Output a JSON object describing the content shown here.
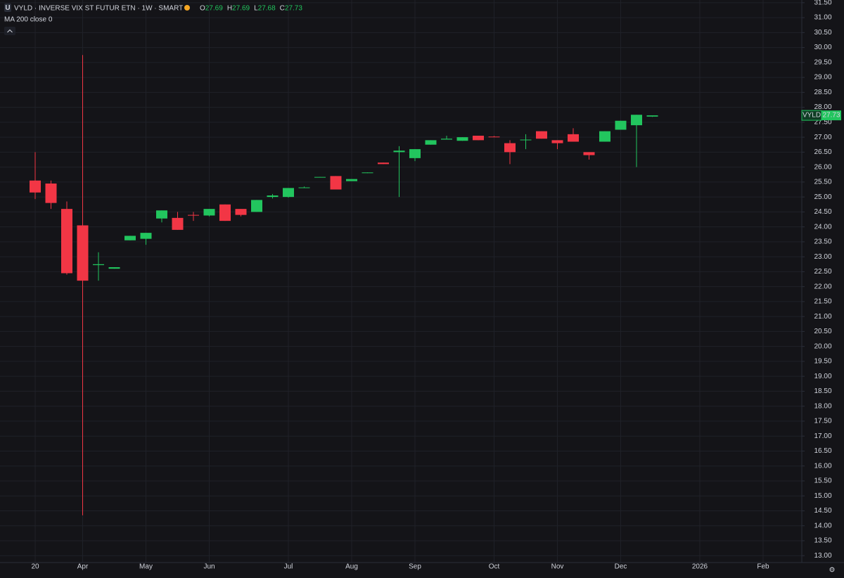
{
  "chart_data": {
    "type": "candlestick",
    "logo_letter": "U",
    "title": "VYLD · INVERSE VIX ST FUTUR ETN · 1W · SMART",
    "legend_labels": [
      "O",
      "H",
      "L",
      "C"
    ],
    "indicator": "MA 200 close 0",
    "price_tag_symbol": "VYLD",
    "up_color": "#22c55e",
    "down_color": "#f23645",
    "grid": true,
    "categories": [
      "20",
      null,
      null,
      "Apr",
      null,
      null,
      null,
      "May",
      null,
      null,
      null,
      "Jun",
      null,
      null,
      null,
      null,
      "Jul",
      null,
      null,
      null,
      "Aug",
      null,
      null,
      null,
      "Sep",
      null,
      null,
      null,
      null,
      "Oct",
      null,
      null,
      null,
      "Nov",
      null,
      null,
      null,
      "Dec",
      null,
      null,
      null,
      null,
      "2026",
      null,
      null,
      null,
      "Feb",
      null
    ],
    "open": [
      25.55,
      25.45,
      24.6,
      24.05,
      22.72,
      22.6,
      23.55,
      23.6,
      24.28,
      24.3,
      24.4,
      24.38,
      24.75,
      24.6,
      24.5,
      25.0,
      25.0,
      25.3,
      25.65,
      25.7,
      25.53,
      25.8,
      26.15,
      26.5,
      26.3,
      26.75,
      26.92,
      26.88,
      27.05,
      27.02,
      26.8,
      26.9,
      27.2,
      26.9,
      27.1,
      26.5,
      26.85,
      27.25,
      27.4,
      27.69,
      null,
      null,
      null,
      null,
      null,
      null,
      null,
      null
    ],
    "high": [
      26.5,
      25.55,
      24.85,
      29.75,
      23.15,
      22.65,
      23.7,
      23.8,
      24.55,
      24.5,
      24.5,
      24.6,
      24.75,
      24.6,
      24.9,
      25.1,
      25.3,
      25.35,
      25.67,
      25.7,
      25.6,
      25.82,
      26.15,
      26.7,
      26.6,
      26.9,
      27.05,
      27.0,
      27.05,
      27.04,
      26.9,
      27.1,
      27.2,
      26.9,
      27.3,
      26.5,
      27.2,
      27.55,
      27.75,
      27.69,
      null,
      null,
      null,
      null,
      null,
      null,
      null,
      null
    ],
    "low": [
      24.93,
      24.6,
      22.4,
      14.35,
      22.2,
      22.6,
      23.55,
      23.4,
      24.15,
      23.9,
      24.2,
      24.35,
      24.2,
      24.35,
      24.5,
      24.95,
      24.98,
      25.3,
      25.65,
      25.25,
      25.53,
      25.8,
      26.1,
      25.0,
      26.2,
      26.75,
      26.92,
      26.88,
      26.9,
      27.0,
      26.1,
      26.6,
      26.95,
      26.6,
      26.85,
      26.25,
      26.85,
      27.25,
      26.0,
      27.68,
      null,
      null,
      null,
      null,
      null,
      null,
      null,
      null
    ],
    "close": [
      25.15,
      24.8,
      22.45,
      22.2,
      22.75,
      22.65,
      23.7,
      23.8,
      24.55,
      23.9,
      24.38,
      24.6,
      24.2,
      24.4,
      24.9,
      25.05,
      25.3,
      25.32,
      25.67,
      25.25,
      25.6,
      25.82,
      26.1,
      26.55,
      26.6,
      26.9,
      26.95,
      27.0,
      26.9,
      27.0,
      26.5,
      26.92,
      26.95,
      26.8,
      26.85,
      26.4,
      27.2,
      27.55,
      27.75,
      27.73,
      null,
      null,
      null,
      null,
      null,
      null,
      null,
      null
    ],
    "ylim": [
      12.77,
      31.59
    ],
    "yticks": [
      {
        "value": 13,
        "label": "13.00"
      },
      {
        "value": 13.5,
        "label": "13.50"
      },
      {
        "value": 14,
        "label": "14.00"
      },
      {
        "value": 14.5,
        "label": "14.50"
      },
      {
        "value": 15,
        "label": "15.00"
      },
      {
        "value": 15.5,
        "label": "15.50"
      },
      {
        "value": 16,
        "label": "16.00"
      },
      {
        "value": 16.5,
        "label": "16.50"
      },
      {
        "value": 17,
        "label": "17.00"
      },
      {
        "value": 17.5,
        "label": "17.50"
      },
      {
        "value": 18,
        "label": "18.00"
      },
      {
        "value": 18.5,
        "label": "18.50"
      },
      {
        "value": 19,
        "label": "19.00"
      },
      {
        "value": 19.5,
        "label": "19.50"
      },
      {
        "value": 20,
        "label": "20.00"
      },
      {
        "value": 20.5,
        "label": "20.50"
      },
      {
        "value": 21,
        "label": "21.00"
      },
      {
        "value": 21.5,
        "label": "21.50"
      },
      {
        "value": 22,
        "label": "22.00"
      },
      {
        "value": 22.5,
        "label": "22.50"
      },
      {
        "value": 23,
        "label": "23.00"
      },
      {
        "value": 23.5,
        "label": "23.50"
      },
      {
        "value": 24,
        "label": "24.00"
      },
      {
        "value": 24.5,
        "label": "24.50"
      },
      {
        "value": 25,
        "label": "25.00"
      },
      {
        "value": 25.5,
        "label": "25.50"
      },
      {
        "value": 26,
        "label": "26.00"
      },
      {
        "value": 26.5,
        "label": "26.50"
      },
      {
        "value": 27,
        "label": "27.00"
      },
      {
        "value": 27.5,
        "label": "27.50"
      },
      {
        "value": 28,
        "label": "28.00"
      },
      {
        "value": 28.5,
        "label": "28.50"
      },
      {
        "value": 29,
        "label": "29.00"
      },
      {
        "value": 29.5,
        "label": "29.50"
      },
      {
        "value": 30,
        "label": "30.00"
      },
      {
        "value": 30.5,
        "label": "30.50"
      },
      {
        "value": 31,
        "label": "31.00"
      },
      {
        "value": 31.5,
        "label": "31.50"
      }
    ]
  }
}
